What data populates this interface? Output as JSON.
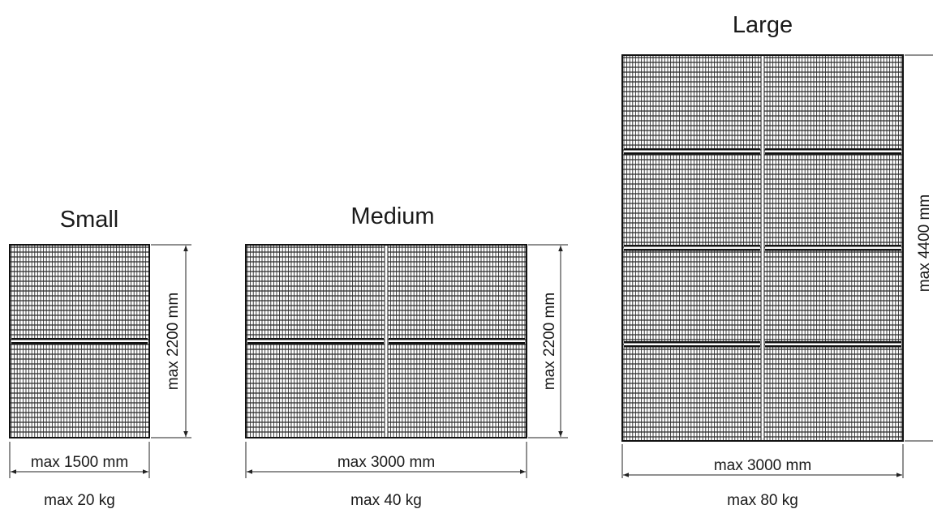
{
  "panels": [
    {
      "id": "small",
      "title": "Small",
      "width_label": "max 1500 mm",
      "height_label": "max 2200 mm",
      "weight_label": "max 20 kg"
    },
    {
      "id": "medium",
      "title": "Medium",
      "width_label": "max 3000 mm",
      "height_label": "max 2200 mm",
      "weight_label": "max 40 kg"
    },
    {
      "id": "large",
      "title": "Large",
      "width_label": "max 3000 mm",
      "height_label": "max 4400 mm",
      "weight_label": "max 80 kg"
    }
  ],
  "colors": {
    "grid_line": "#2b2b2b",
    "frame": "#111111",
    "dimension_line": "#222222"
  }
}
